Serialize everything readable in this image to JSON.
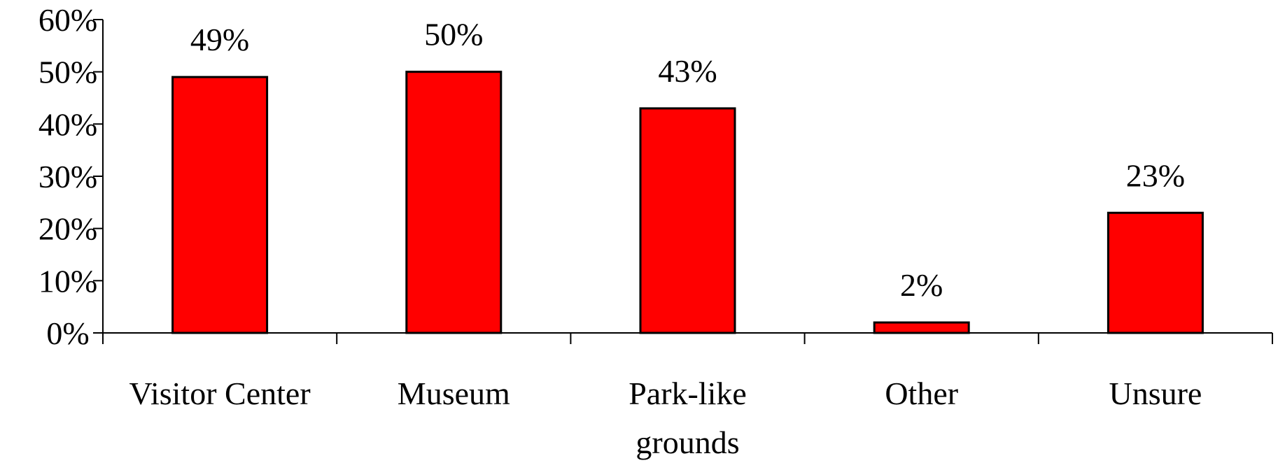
{
  "chart_data": {
    "type": "bar",
    "categories": [
      [
        "Visitor Center"
      ],
      [
        "Museum"
      ],
      [
        "Park-like",
        "grounds"
      ],
      [
        "Other"
      ],
      [
        "Unsure"
      ]
    ],
    "values": [
      49,
      50,
      43,
      2,
      23
    ],
    "value_labels": [
      "49%",
      "50%",
      "43%",
      "2%",
      "23%"
    ],
    "ylim": [
      0,
      60
    ],
    "yticks": [
      0,
      10,
      20,
      30,
      40,
      50,
      60
    ],
    "ytick_labels": [
      "0%",
      "10%",
      "20%",
      "30%",
      "40%",
      "50%",
      "60%"
    ],
    "title": "",
    "xlabel": "",
    "ylabel": "",
    "grid": false,
    "legend": "none",
    "bar_color": "#ff0000"
  }
}
